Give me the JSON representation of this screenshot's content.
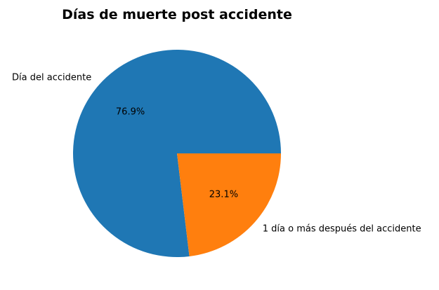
{
  "chart_data": {
    "type": "pie",
    "title": "Días de muerte post accidente",
    "categories": [
      "Día del accidente",
      "1 día o más después del accidente"
    ],
    "values": [
      76.9,
      23.1
    ],
    "percent_labels": [
      "76.9%",
      "23.1%"
    ],
    "colors": [
      "#1f77b4",
      "#ff7f0e"
    ],
    "start_angle_deg": 0,
    "direction": "counterclockwise",
    "legend": "none"
  }
}
